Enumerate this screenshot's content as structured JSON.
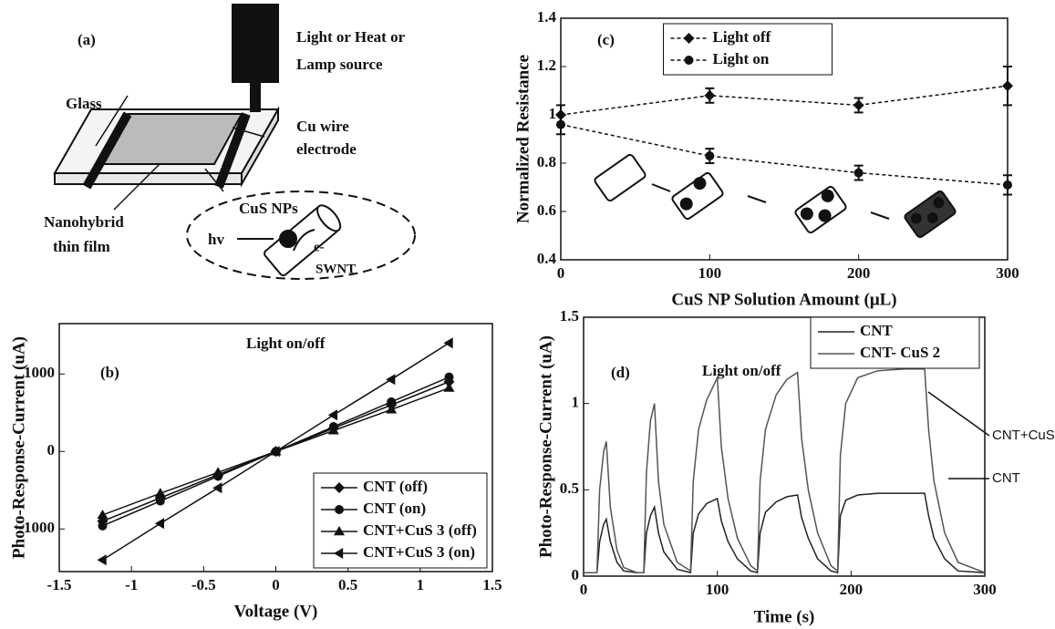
{
  "diagram": {
    "label": "(a)",
    "lamp": [
      "Light or Heat or",
      "Lamp source"
    ],
    "glass": "Glass",
    "electrode": [
      "Cu wire",
      "electrode"
    ],
    "film": [
      "Nanohybrid",
      "thin film"
    ],
    "particles": "CuS NPs",
    "photon": "hv",
    "electron": "e-",
    "tube": "SWNT"
  },
  "chart_data": [
    {
      "type": "line",
      "label": "(b)",
      "x_label": "Voltage (V)",
      "y_label": "Photo-Response-Current (uA)",
      "x": [
        -1.2,
        -0.8,
        -0.4,
        0,
        0.4,
        0.8,
        1.2
      ],
      "series": [
        {
          "name": "CNT (off)",
          "color": "#111111",
          "marker": "diamond",
          "values": [
            -900,
            -600,
            -300,
            0,
            300,
            600,
            900
          ]
        },
        {
          "name": "CNT (on)",
          "color": "#111111",
          "marker": "circle",
          "values": [
            -960,
            -640,
            -320,
            0,
            320,
            640,
            960
          ]
        },
        {
          "name": "CNT+CuS 3 (off)",
          "color": "#111111",
          "marker": "triangle",
          "values": [
            -820,
            -540,
            -270,
            0,
            270,
            540,
            820
          ]
        },
        {
          "name": "CNT+CuS 3 (on)",
          "color": "#111111",
          "marker": "triangle-left",
          "values": [
            -1400,
            -930,
            -470,
            0,
            470,
            930,
            1400
          ]
        }
      ],
      "annotations": [
        "Light on/off"
      ],
      "xlim": [
        -1.5,
        1.5
      ],
      "ylim": [
        -1550,
        1650
      ],
      "xticks": [
        -1.5,
        -1,
        -0.5,
        0,
        0.5,
        1,
        1.5
      ],
      "yticks": [
        -1000,
        0,
        1000
      ],
      "legend": "lower right"
    },
    {
      "type": "line",
      "label": "(c)",
      "x_label": "CuS NP Solution Amount (μL)",
      "y_label": "Normalized Resistance",
      "x": [
        0,
        100,
        200,
        300
      ],
      "series": [
        {
          "name": "Light off",
          "color": "#111111",
          "marker": "diamond",
          "linestyle": "dashed",
          "values": [
            1.0,
            1.08,
            1.04,
            1.12
          ],
          "errors": [
            0.04,
            0.03,
            0.03,
            0.08
          ]
        },
        {
          "name": "Light on",
          "color": "#111111",
          "marker": "circle",
          "linestyle": "dashed",
          "values": [
            0.96,
            0.83,
            0.76,
            0.71
          ],
          "errors": [
            0.04,
            0.03,
            0.03,
            0.04
          ]
        }
      ],
      "xlim": [
        0,
        300
      ],
      "ylim": [
        0.4,
        1.4
      ],
      "xticks": [
        0,
        100,
        200,
        300
      ],
      "yticks": [
        0.4,
        0.6,
        0.8,
        1,
        1.2,
        1.4
      ],
      "legend": "upper center"
    },
    {
      "type": "line",
      "label": "(d)",
      "x_label": "Time (s)",
      "y_label": "Photo-Response-Current (uA)",
      "x": [
        0,
        10,
        12,
        15,
        17,
        20,
        25,
        30,
        40,
        45,
        47,
        50,
        53,
        56,
        60,
        70,
        80,
        82,
        86,
        92,
        100,
        103,
        108,
        115,
        125,
        130,
        132,
        136,
        144,
        152,
        160,
        163,
        168,
        175,
        185,
        190,
        192,
        196,
        205,
        220,
        240,
        255,
        258,
        262,
        270,
        280,
        300
      ],
      "series": [
        {
          "name": "CNT",
          "color": "#222222",
          "values": [
            0.02,
            0.02,
            0.2,
            0.3,
            0.33,
            0.2,
            0.08,
            0.03,
            0.02,
            0.02,
            0.25,
            0.35,
            0.4,
            0.25,
            0.14,
            0.04,
            0.02,
            0.25,
            0.36,
            0.42,
            0.45,
            0.32,
            0.2,
            0.1,
            0.03,
            0.02,
            0.25,
            0.37,
            0.43,
            0.46,
            0.47,
            0.34,
            0.22,
            0.1,
            0.03,
            0.02,
            0.35,
            0.44,
            0.47,
            0.48,
            0.48,
            0.48,
            0.35,
            0.22,
            0.1,
            0.03,
            0.02
          ]
        },
        {
          "name": "CNT- CuS 2",
          "color": "#555555",
          "values": [
            0.02,
            0.02,
            0.5,
            0.72,
            0.78,
            0.4,
            0.15,
            0.05,
            0.02,
            0.02,
            0.6,
            0.9,
            1.0,
            0.55,
            0.3,
            0.08,
            0.03,
            0.55,
            0.85,
            1.02,
            1.15,
            0.75,
            0.45,
            0.22,
            0.06,
            0.03,
            0.55,
            0.85,
            1.05,
            1.14,
            1.18,
            0.8,
            0.5,
            0.25,
            0.06,
            0.03,
            0.7,
            1.0,
            1.15,
            1.19,
            1.2,
            1.2,
            0.85,
            0.55,
            0.25,
            0.08,
            0.02
          ]
        }
      ],
      "annotations": [
        "Light on/off",
        "CNT+CuS",
        "CNT"
      ],
      "xlim": [
        0,
        300
      ],
      "ylim": [
        0,
        1.5
      ],
      "xticks": [
        0,
        100,
        200,
        300
      ],
      "yticks": [
        0,
        0.5,
        1,
        1.5
      ],
      "legend": "upper right"
    }
  ]
}
